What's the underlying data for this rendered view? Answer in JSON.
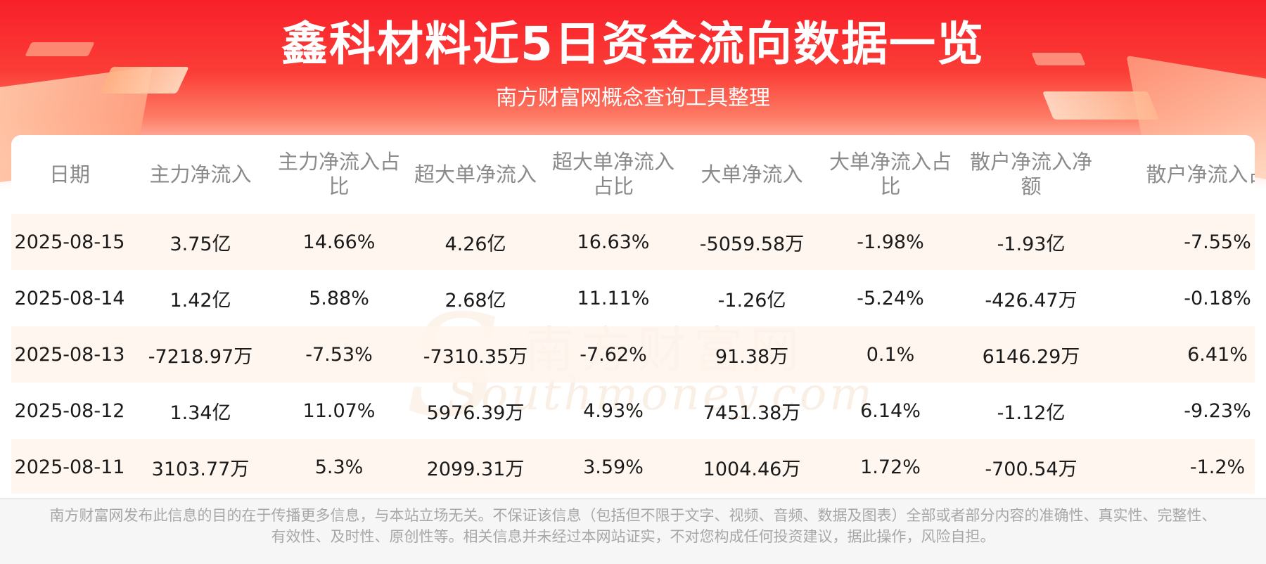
{
  "header": {
    "title": "鑫科材料近5日资金流向数据一览",
    "subtitle": "南方财富网概念查询工具整理"
  },
  "watermark": {
    "cn": "南方财富网",
    "en": "Southmoney.com"
  },
  "table": {
    "columns": [
      "日期",
      "主力净流入",
      "主力净流入占比",
      "超大单净流入",
      "超大单净流入占比",
      "大单净流入",
      "大单净流入占比",
      "散户净流入净额",
      "散户净流入占比"
    ],
    "rows": [
      [
        "2025-08-15",
        "3.75亿",
        "14.66%",
        "4.26亿",
        "16.63%",
        "-5059.58万",
        "-1.98%",
        "-1.93亿",
        "-7.55%"
      ],
      [
        "2025-08-14",
        "1.42亿",
        "5.88%",
        "2.68亿",
        "11.11%",
        "-1.26亿",
        "-5.24%",
        "-426.47万",
        "-0.18%"
      ],
      [
        "2025-08-13",
        "-7218.97万",
        "-7.53%",
        "-7310.35万",
        "-7.62%",
        "91.38万",
        "0.1%",
        "6146.29万",
        "6.41%"
      ],
      [
        "2025-08-12",
        "1.34亿",
        "11.07%",
        "5976.39万",
        "4.93%",
        "7451.38万",
        "6.14%",
        "-1.12亿",
        "-9.23%"
      ],
      [
        "2025-08-11",
        "3103.77万",
        "5.3%",
        "2099.31万",
        "3.59%",
        "1004.46万",
        "1.72%",
        "-700.54万",
        "-1.2%"
      ]
    ]
  },
  "footer": {
    "disclaimer": "南方财富网发布此信息的目的在于传播更多信息，与本站立场无关。不保证该信息（包括但不限于文字、视频、音频、数据及图表）全部或者部分内容的准确性、真实性、完整性、有效性、及时性、原创性等。相关信息并未经过本网站证实，不对您构成任何投资建议，据此操作，风险自担。"
  },
  "colors": {
    "banner_red": "#f8202a",
    "row_stripe": "#fff4ec",
    "header_text": "#8a8a8a"
  }
}
